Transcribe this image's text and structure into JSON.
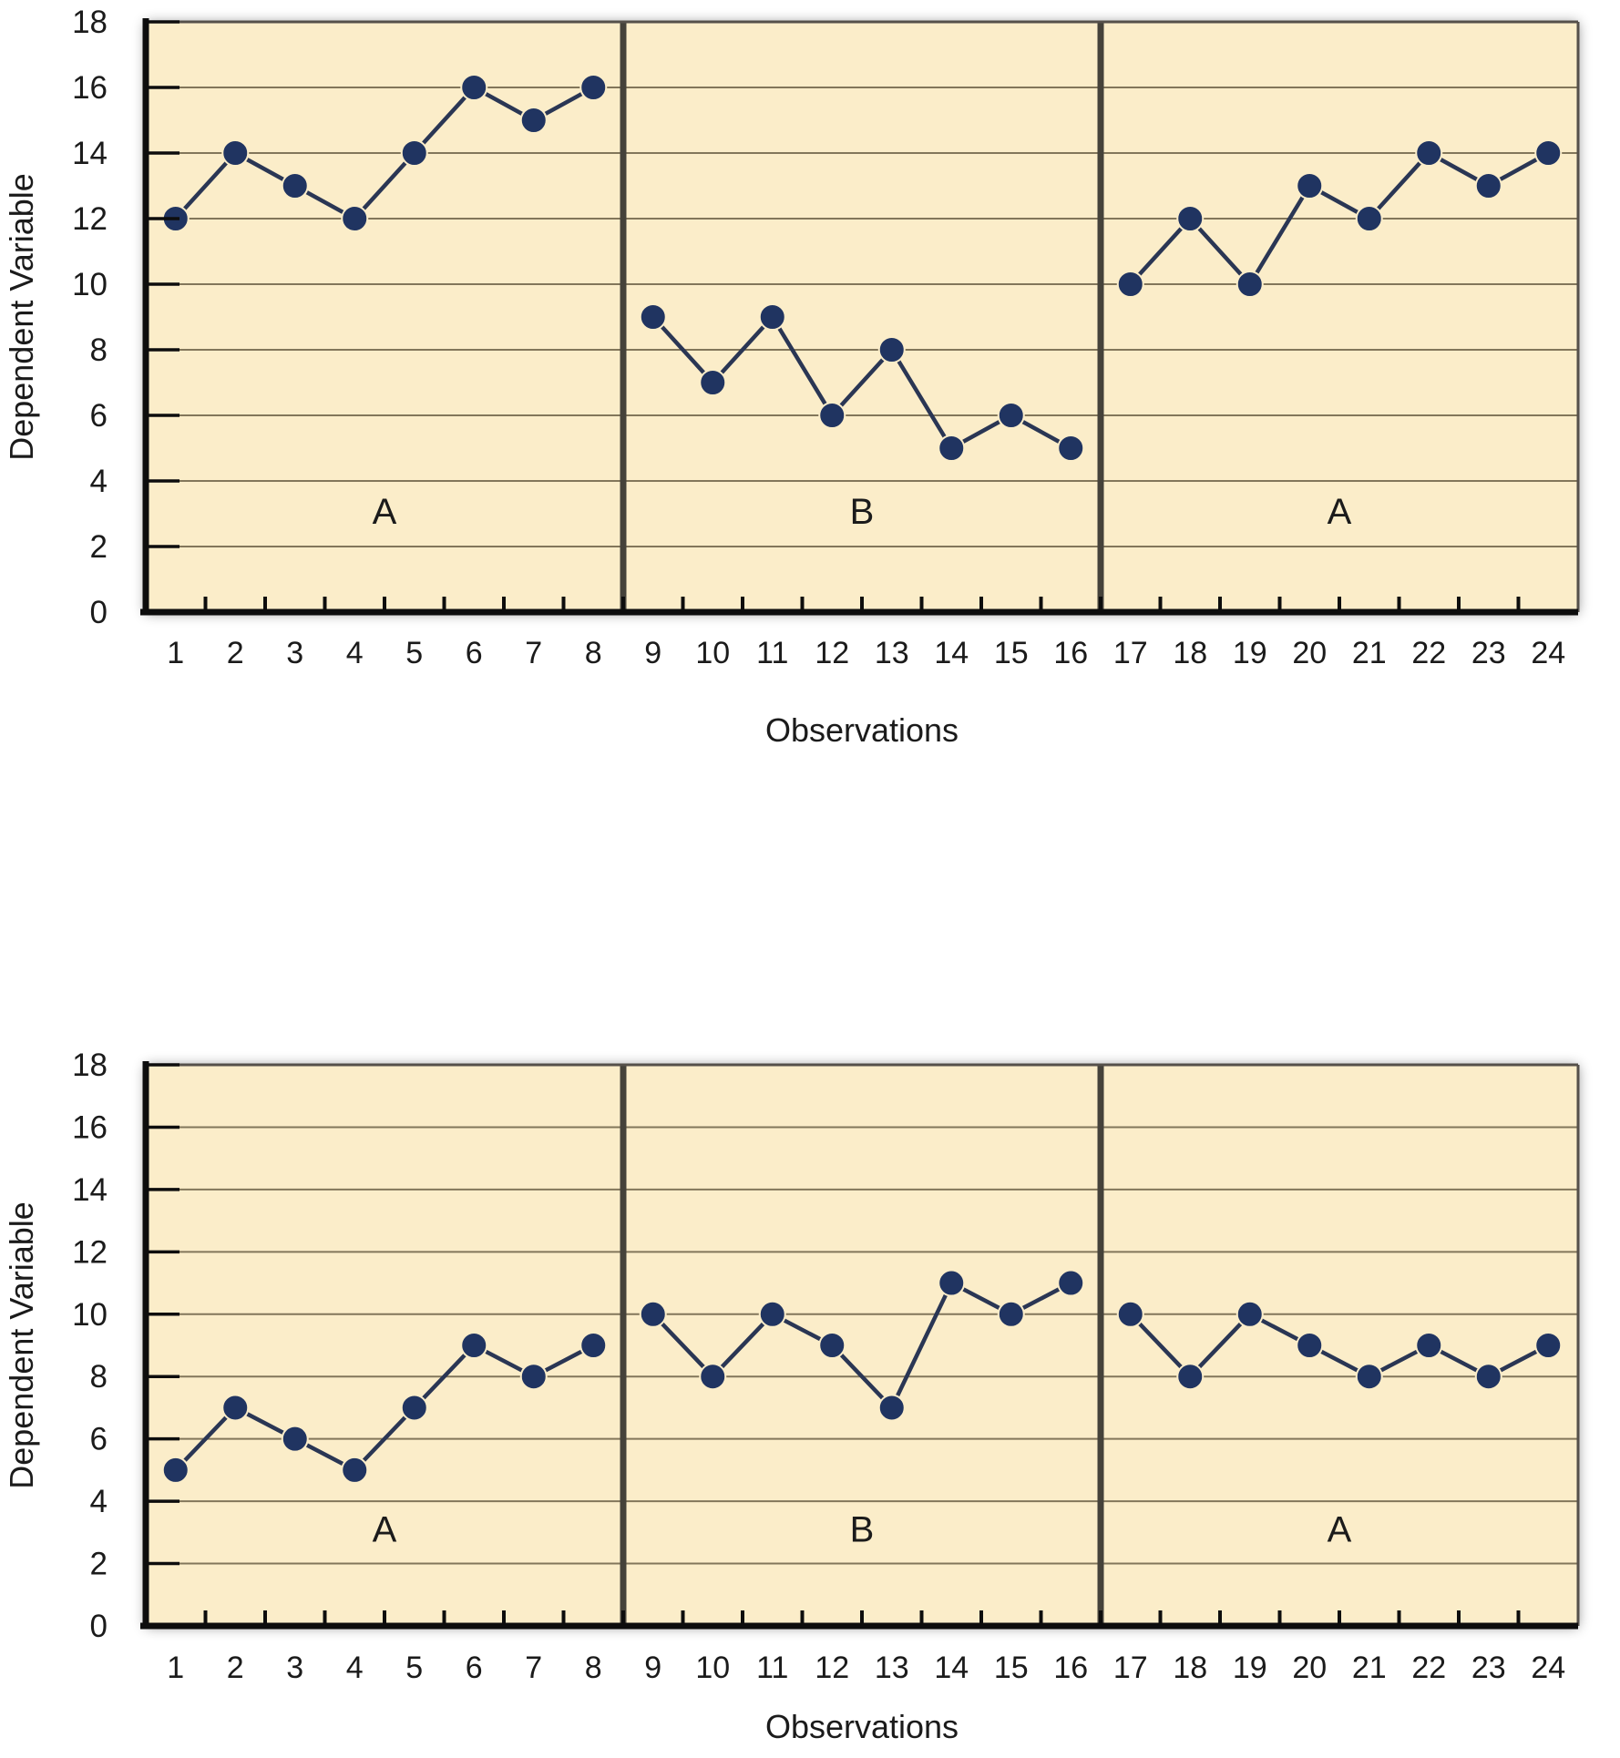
{
  "figure": {
    "description": "Two ABA reversal design line graphs",
    "panel_sequence": [
      "A",
      "B",
      "A"
    ]
  },
  "colors": {
    "page_bg": "#FFFFFF",
    "plot_bg": "#FBEDC9",
    "gridline": "#82765A",
    "plot_border": "#55504A",
    "axis": "#0D0D0D",
    "phase_divider": "#45423A",
    "data_line": "#2A3654",
    "data_point": "#203461",
    "point_halo": "#FBEDC9",
    "text": "#1B1B1B",
    "shadow": "#000000"
  },
  "chart_data": [
    {
      "type": "line",
      "title": "",
      "xlabel": "Observations",
      "ylabel": "Dependent Variable",
      "ylim": [
        0,
        18
      ],
      "y_ticks": [
        0,
        2,
        4,
        6,
        8,
        10,
        12,
        14,
        16,
        18
      ],
      "x_ticks": [
        1,
        2,
        3,
        4,
        5,
        6,
        7,
        8,
        9,
        10,
        11,
        12,
        13,
        14,
        15,
        16,
        17,
        18,
        19,
        20,
        21,
        22,
        23,
        24
      ],
      "grid": true,
      "legend": "none",
      "phases": [
        {
          "label": "A",
          "x": [
            1,
            2,
            3,
            4,
            5,
            6,
            7,
            8
          ],
          "values": [
            12,
            14,
            13,
            12,
            14,
            16,
            15,
            16
          ]
        },
        {
          "label": "B",
          "x": [
            9,
            10,
            11,
            12,
            13,
            14,
            15,
            16
          ],
          "values": [
            9,
            7,
            9,
            6,
            8,
            5,
            6,
            5
          ]
        },
        {
          "label": "A",
          "x": [
            17,
            18,
            19,
            20,
            21,
            22,
            23,
            24
          ],
          "values": [
            10,
            12,
            10,
            13,
            12,
            14,
            13,
            14
          ]
        }
      ]
    },
    {
      "type": "line",
      "title": "",
      "xlabel": "Observations",
      "ylabel": "Dependent Variable",
      "ylim": [
        0,
        18
      ],
      "y_ticks": [
        0,
        2,
        4,
        6,
        8,
        10,
        12,
        14,
        16,
        18
      ],
      "x_ticks": [
        1,
        2,
        3,
        4,
        5,
        6,
        7,
        8,
        9,
        10,
        11,
        12,
        13,
        14,
        15,
        16,
        17,
        18,
        19,
        20,
        21,
        22,
        23,
        24
      ],
      "grid": true,
      "legend": "none",
      "phases": [
        {
          "label": "A",
          "x": [
            1,
            2,
            3,
            4,
            5,
            6,
            7,
            8
          ],
          "values": [
            5,
            7,
            6,
            5,
            7,
            9,
            8,
            9
          ]
        },
        {
          "label": "B",
          "x": [
            9,
            10,
            11,
            12,
            13,
            14,
            15,
            16
          ],
          "values": [
            10,
            8,
            10,
            9,
            7,
            11,
            10,
            11
          ]
        },
        {
          "label": "A",
          "x": [
            17,
            18,
            19,
            20,
            21,
            22,
            23,
            24
          ],
          "values": [
            10,
            8,
            10,
            9,
            8,
            9,
            8,
            9
          ]
        }
      ]
    }
  ]
}
